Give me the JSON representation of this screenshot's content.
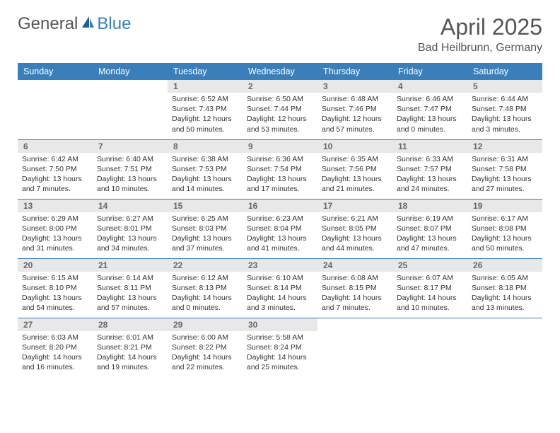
{
  "logo": {
    "text1": "General",
    "text2": "Blue"
  },
  "title": "April 2025",
  "location": "Bad Heilbrunn, Germany",
  "colors": {
    "header_bg": "#3a7fba",
    "header_text": "#ffffff",
    "daynum_bg": "#e8e8e8",
    "daynum_text": "#666666",
    "body_text": "#333333",
    "rule": "#3a7fba",
    "page_bg": "#ffffff",
    "logo_gray": "#555555",
    "logo_blue": "#3a7fba"
  },
  "typography": {
    "title_fontsize": 32,
    "location_fontsize": 16,
    "dayheader_fontsize": 12.5,
    "daynum_fontsize": 12,
    "body_fontsize": 10.5,
    "font_family": "Arial"
  },
  "day_headers": [
    "Sunday",
    "Monday",
    "Tuesday",
    "Wednesday",
    "Thursday",
    "Friday",
    "Saturday"
  ],
  "weeks": [
    [
      {
        "empty": true
      },
      {
        "empty": true
      },
      {
        "n": "1",
        "sunrise": "Sunrise: 6:52 AM",
        "sunset": "Sunset: 7:43 PM",
        "daylight": "Daylight: 12 hours and 50 minutes."
      },
      {
        "n": "2",
        "sunrise": "Sunrise: 6:50 AM",
        "sunset": "Sunset: 7:44 PM",
        "daylight": "Daylight: 12 hours and 53 minutes."
      },
      {
        "n": "3",
        "sunrise": "Sunrise: 6:48 AM",
        "sunset": "Sunset: 7:46 PM",
        "daylight": "Daylight: 12 hours and 57 minutes."
      },
      {
        "n": "4",
        "sunrise": "Sunrise: 6:46 AM",
        "sunset": "Sunset: 7:47 PM",
        "daylight": "Daylight: 13 hours and 0 minutes."
      },
      {
        "n": "5",
        "sunrise": "Sunrise: 6:44 AM",
        "sunset": "Sunset: 7:48 PM",
        "daylight": "Daylight: 13 hours and 3 minutes."
      }
    ],
    [
      {
        "n": "6",
        "sunrise": "Sunrise: 6:42 AM",
        "sunset": "Sunset: 7:50 PM",
        "daylight": "Daylight: 13 hours and 7 minutes."
      },
      {
        "n": "7",
        "sunrise": "Sunrise: 6:40 AM",
        "sunset": "Sunset: 7:51 PM",
        "daylight": "Daylight: 13 hours and 10 minutes."
      },
      {
        "n": "8",
        "sunrise": "Sunrise: 6:38 AM",
        "sunset": "Sunset: 7:53 PM",
        "daylight": "Daylight: 13 hours and 14 minutes."
      },
      {
        "n": "9",
        "sunrise": "Sunrise: 6:36 AM",
        "sunset": "Sunset: 7:54 PM",
        "daylight": "Daylight: 13 hours and 17 minutes."
      },
      {
        "n": "10",
        "sunrise": "Sunrise: 6:35 AM",
        "sunset": "Sunset: 7:56 PM",
        "daylight": "Daylight: 13 hours and 21 minutes."
      },
      {
        "n": "11",
        "sunrise": "Sunrise: 6:33 AM",
        "sunset": "Sunset: 7:57 PM",
        "daylight": "Daylight: 13 hours and 24 minutes."
      },
      {
        "n": "12",
        "sunrise": "Sunrise: 6:31 AM",
        "sunset": "Sunset: 7:58 PM",
        "daylight": "Daylight: 13 hours and 27 minutes."
      }
    ],
    [
      {
        "n": "13",
        "sunrise": "Sunrise: 6:29 AM",
        "sunset": "Sunset: 8:00 PM",
        "daylight": "Daylight: 13 hours and 31 minutes."
      },
      {
        "n": "14",
        "sunrise": "Sunrise: 6:27 AM",
        "sunset": "Sunset: 8:01 PM",
        "daylight": "Daylight: 13 hours and 34 minutes."
      },
      {
        "n": "15",
        "sunrise": "Sunrise: 6:25 AM",
        "sunset": "Sunset: 8:03 PM",
        "daylight": "Daylight: 13 hours and 37 minutes."
      },
      {
        "n": "16",
        "sunrise": "Sunrise: 6:23 AM",
        "sunset": "Sunset: 8:04 PM",
        "daylight": "Daylight: 13 hours and 41 minutes."
      },
      {
        "n": "17",
        "sunrise": "Sunrise: 6:21 AM",
        "sunset": "Sunset: 8:05 PM",
        "daylight": "Daylight: 13 hours and 44 minutes."
      },
      {
        "n": "18",
        "sunrise": "Sunrise: 6:19 AM",
        "sunset": "Sunset: 8:07 PM",
        "daylight": "Daylight: 13 hours and 47 minutes."
      },
      {
        "n": "19",
        "sunrise": "Sunrise: 6:17 AM",
        "sunset": "Sunset: 8:08 PM",
        "daylight": "Daylight: 13 hours and 50 minutes."
      }
    ],
    [
      {
        "n": "20",
        "sunrise": "Sunrise: 6:15 AM",
        "sunset": "Sunset: 8:10 PM",
        "daylight": "Daylight: 13 hours and 54 minutes."
      },
      {
        "n": "21",
        "sunrise": "Sunrise: 6:14 AM",
        "sunset": "Sunset: 8:11 PM",
        "daylight": "Daylight: 13 hours and 57 minutes."
      },
      {
        "n": "22",
        "sunrise": "Sunrise: 6:12 AM",
        "sunset": "Sunset: 8:13 PM",
        "daylight": "Daylight: 14 hours and 0 minutes."
      },
      {
        "n": "23",
        "sunrise": "Sunrise: 6:10 AM",
        "sunset": "Sunset: 8:14 PM",
        "daylight": "Daylight: 14 hours and 3 minutes."
      },
      {
        "n": "24",
        "sunrise": "Sunrise: 6:08 AM",
        "sunset": "Sunset: 8:15 PM",
        "daylight": "Daylight: 14 hours and 7 minutes."
      },
      {
        "n": "25",
        "sunrise": "Sunrise: 6:07 AM",
        "sunset": "Sunset: 8:17 PM",
        "daylight": "Daylight: 14 hours and 10 minutes."
      },
      {
        "n": "26",
        "sunrise": "Sunrise: 6:05 AM",
        "sunset": "Sunset: 8:18 PM",
        "daylight": "Daylight: 14 hours and 13 minutes."
      }
    ],
    [
      {
        "n": "27",
        "sunrise": "Sunrise: 6:03 AM",
        "sunset": "Sunset: 8:20 PM",
        "daylight": "Daylight: 14 hours and 16 minutes."
      },
      {
        "n": "28",
        "sunrise": "Sunrise: 6:01 AM",
        "sunset": "Sunset: 8:21 PM",
        "daylight": "Daylight: 14 hours and 19 minutes."
      },
      {
        "n": "29",
        "sunrise": "Sunrise: 6:00 AM",
        "sunset": "Sunset: 8:22 PM",
        "daylight": "Daylight: 14 hours and 22 minutes."
      },
      {
        "n": "30",
        "sunrise": "Sunrise: 5:58 AM",
        "sunset": "Sunset: 8:24 PM",
        "daylight": "Daylight: 14 hours and 25 minutes."
      },
      {
        "empty": true
      },
      {
        "empty": true
      },
      {
        "empty": true
      }
    ]
  ]
}
